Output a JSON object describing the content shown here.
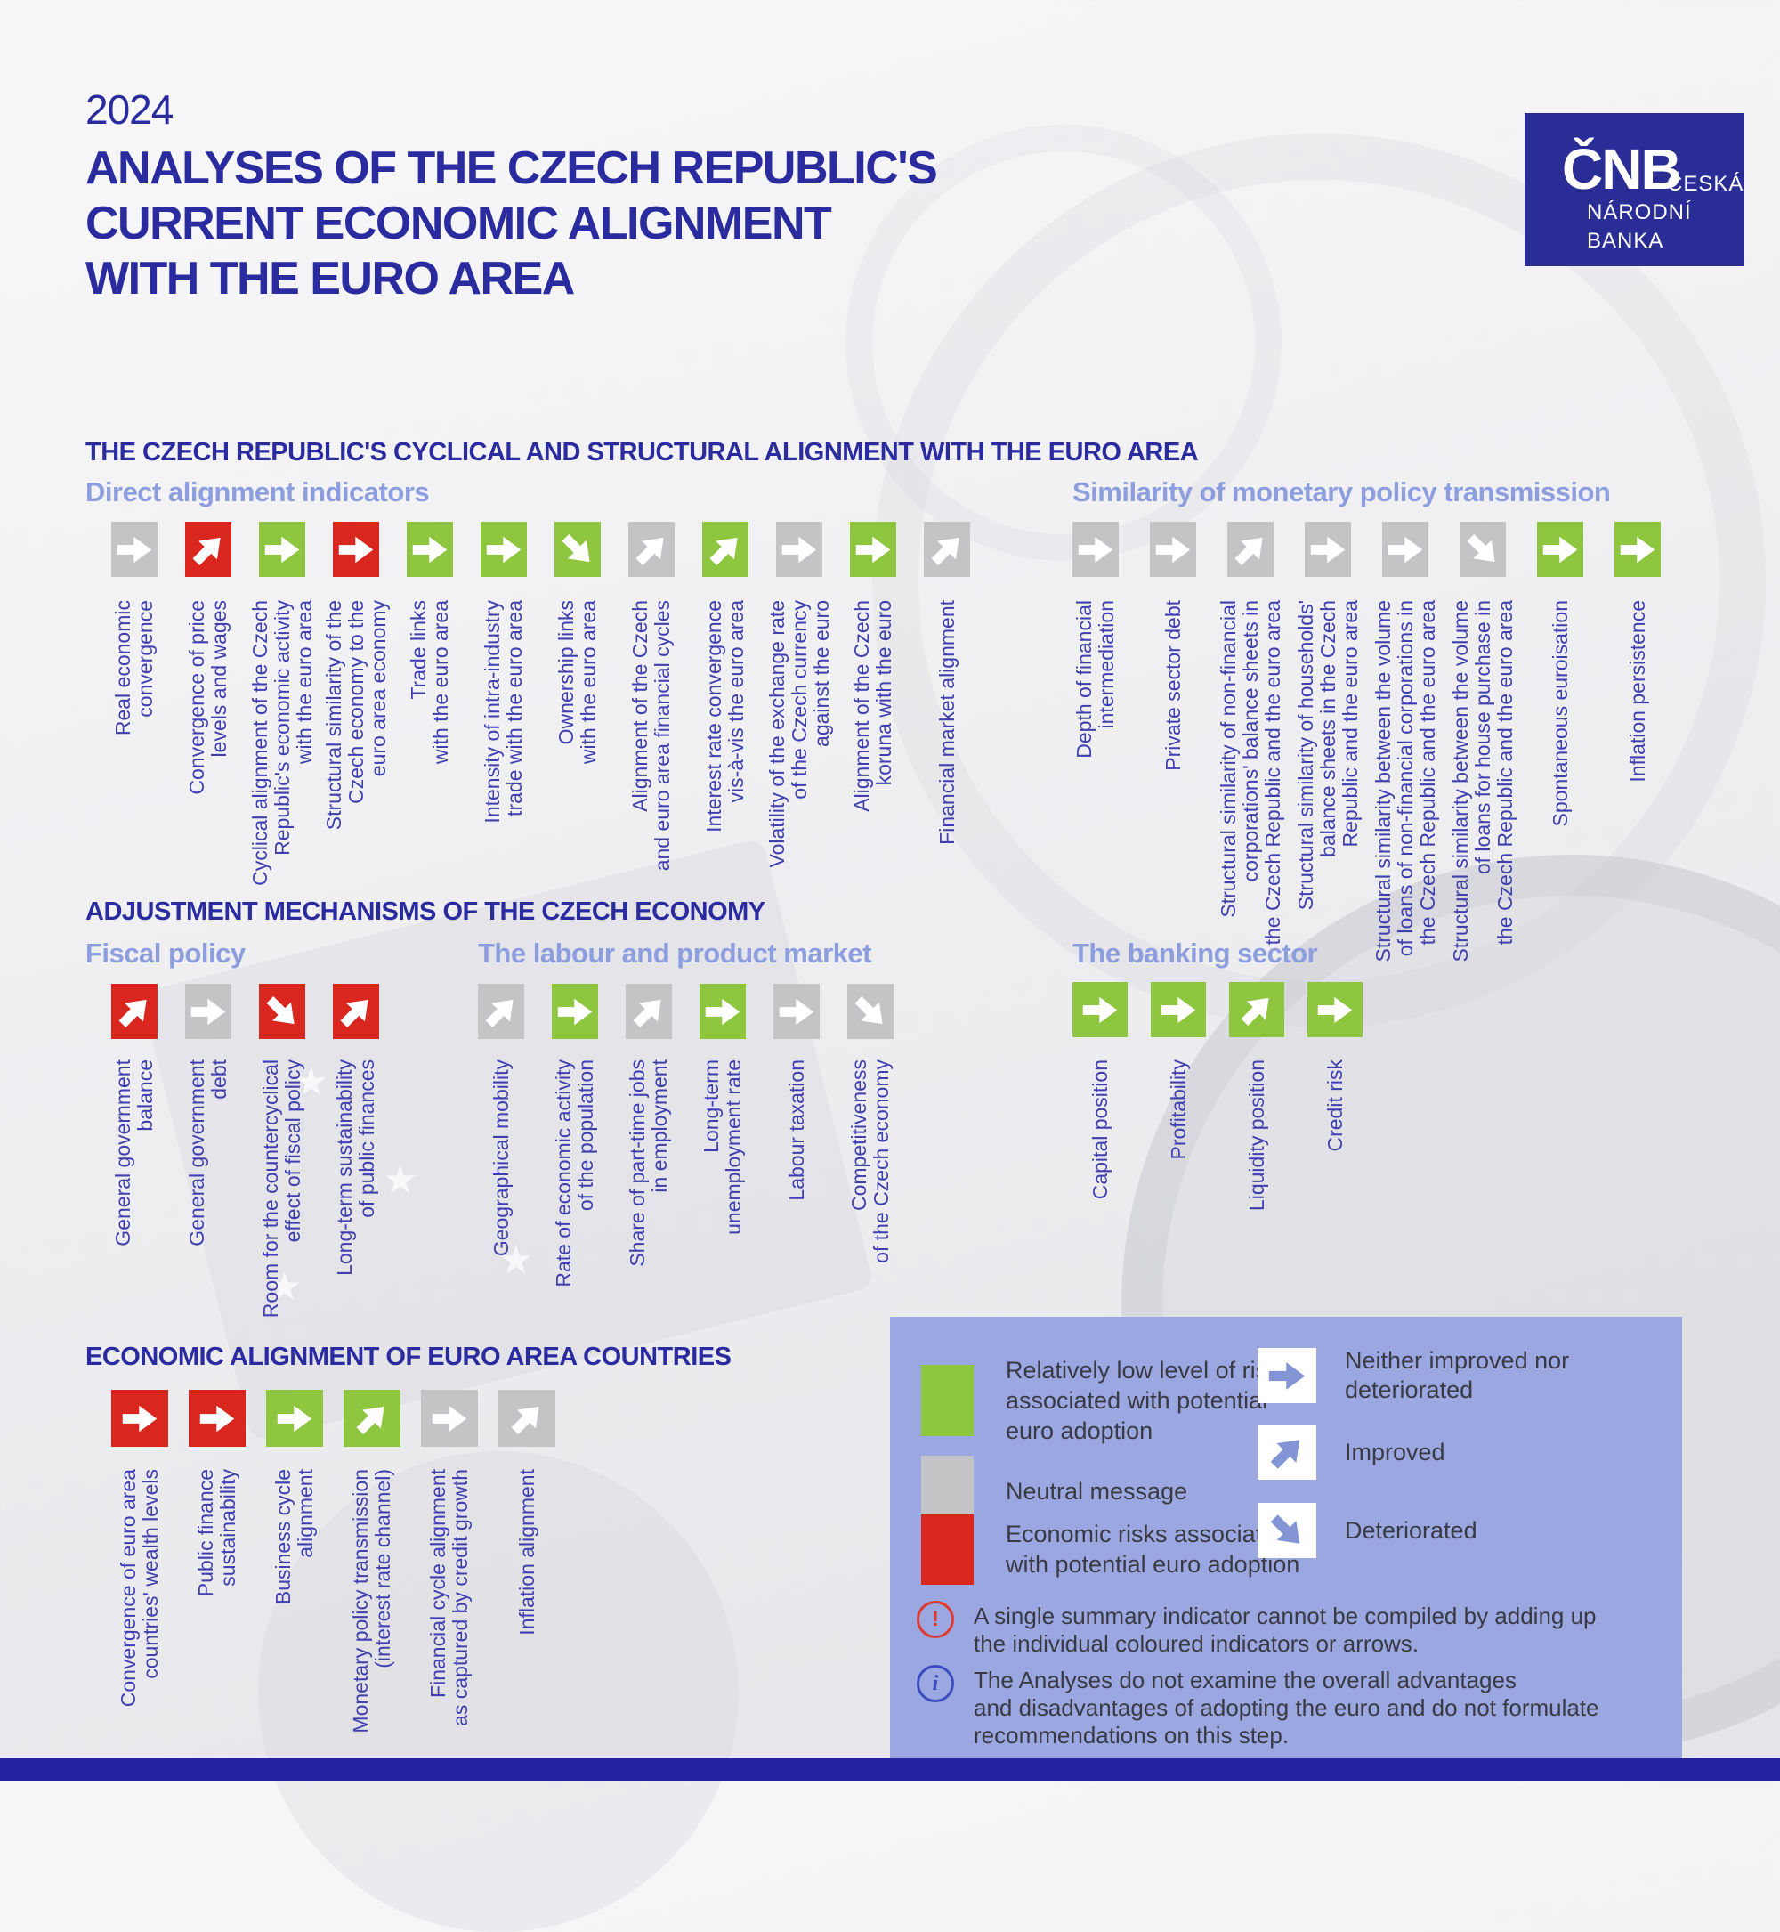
{
  "colors": {
    "green": "#8fc640",
    "grey": "#c4c4c6",
    "red": "#d9261f",
    "dark_blue": "#2b2ba0",
    "label_blue": "#3f3fae",
    "subhead": "#8d9ede",
    "panel": "#9ba7e0",
    "panel_arrow": "#8495d5",
    "text": "#3a3a44",
    "note_warning": "#e03a30",
    "note_info": "#3b4cc0",
    "bottom_bar": "#2323a2",
    "logo_bg": "#2a2d96"
  },
  "header": {
    "year": "2024",
    "title": "ANALYSES OF THE CZECH REPUBLIC'S\nCURRENT ECONOMIC ALIGNMENT\nWITH THE EURO AREA",
    "logo": {
      "abbr": "ČNB",
      "line1": "ČESKÁ",
      "line2": "NÁRODNÍ",
      "line3": "BANKA"
    }
  },
  "sections": {
    "alignment": {
      "title": "THE CZECH REPUBLIC'S CYCLICAL AND STRUCTURAL ALIGNMENT WITH THE EURO AREA"
    },
    "adjustment": {
      "title": "ADJUSTMENT MECHANISMS OF THE CZECH ECONOMY"
    },
    "euro_countries": {
      "title": "ECONOMIC ALIGNMENT OF EURO AREA COUNTRIES"
    }
  },
  "groups": {
    "direct": {
      "name": "Direct alignment indicators",
      "indicators": [
        {
          "label": "Real economic\nconvergence",
          "color": "grey",
          "trend": "same"
        },
        {
          "label": "Convergence of price\nlevels and wages",
          "color": "red",
          "trend": "improved"
        },
        {
          "label": "Cyclical alignment of the Czech\nRepublic's economic activity\nwith the euro area",
          "color": "green",
          "trend": "same"
        },
        {
          "label": "Structural similarity of the\nCzech economy to the\neuro area economy",
          "color": "red",
          "trend": "same"
        },
        {
          "label": "Trade links\nwith the euro area",
          "color": "green",
          "trend": "same"
        },
        {
          "label": "Intensity of intra-industry\ntrade with the euro area",
          "color": "green",
          "trend": "same"
        },
        {
          "label": "Ownership links\nwith the euro area",
          "color": "green",
          "trend": "deteriorated"
        },
        {
          "label": "Alignment of the Czech\nand euro area financial cycles",
          "color": "grey",
          "trend": "improved"
        },
        {
          "label": "Interest rate convergence\nvis-à-vis the euro area",
          "color": "green",
          "trend": "improved"
        },
        {
          "label": "Volatility of the exchange rate\nof the Czech currency\nagainst the euro",
          "color": "grey",
          "trend": "same"
        },
        {
          "label": "Alignment of the Czech\nkoruna with the euro",
          "color": "green",
          "trend": "same"
        },
        {
          "label": "Financial market alignment",
          "color": "grey",
          "trend": "improved"
        }
      ]
    },
    "similarity": {
      "name": "Similarity of monetary policy transmission",
      "indicators": [
        {
          "label": "Depth of financial\nintermediation",
          "color": "grey",
          "trend": "same"
        },
        {
          "label": "Private sector debt",
          "color": "grey",
          "trend": "same"
        },
        {
          "label": "Structural similarity of non-financial\ncorporations' balance sheets in\nthe Czech Republic and the euro area",
          "color": "grey",
          "trend": "improved"
        },
        {
          "label": "Structural similarity of households'\nbalance sheets in the Czech\nRepublic and the euro area",
          "color": "grey",
          "trend": "same"
        },
        {
          "label": "Structural similarity between the volume\nof loans of non-financial corporations in\nthe Czech Republic and the euro area",
          "color": "grey",
          "trend": "same"
        },
        {
          "label": "Structural similarity between the volume\nof loans for house purchase in\nthe Czech Republic and the euro area",
          "color": "grey",
          "trend": "deteriorated"
        },
        {
          "label": "Spontaneous euroisation",
          "color": "green",
          "trend": "same"
        },
        {
          "label": "Inflation persistence",
          "color": "green",
          "trend": "same"
        }
      ]
    },
    "fiscal": {
      "name": "Fiscal policy",
      "indicators": [
        {
          "label": "General government\nbalance",
          "color": "red",
          "trend": "improved"
        },
        {
          "label": "General government\ndebt",
          "color": "grey",
          "trend": "same"
        },
        {
          "label": "Room for the countercyclical\neffect of fiscal policy",
          "color": "red",
          "trend": "deteriorated"
        },
        {
          "label": "Long-term sustainability\nof public finances",
          "color": "red",
          "trend": "improved"
        }
      ]
    },
    "labour": {
      "name": "The labour and product market",
      "indicators": [
        {
          "label": "Geographical mobility",
          "color": "grey",
          "trend": "improved"
        },
        {
          "label": "Rate of economic activity\nof the population",
          "color": "green",
          "trend": "same"
        },
        {
          "label": "Share of part-time jobs\nin employment",
          "color": "grey",
          "trend": "improved"
        },
        {
          "label": "Long-term\nunemployment rate",
          "color": "green",
          "trend": "same"
        },
        {
          "label": "Labour taxation",
          "color": "grey",
          "trend": "same"
        },
        {
          "label": "Competitiveness\nof the Czech economy",
          "color": "grey",
          "trend": "deteriorated"
        }
      ]
    },
    "banking": {
      "name": "The banking sector",
      "indicators": [
        {
          "label": "Capital position",
          "color": "green",
          "trend": "same"
        },
        {
          "label": "Profitability",
          "color": "green",
          "trend": "same"
        },
        {
          "label": "Liquidity position",
          "color": "green",
          "trend": "improved"
        },
        {
          "label": "Credit risk",
          "color": "green",
          "trend": "same"
        }
      ]
    },
    "euroarea": {
      "name": "",
      "indicators": [
        {
          "label": "Convergence of euro area\ncountries' wealth levels",
          "color": "red",
          "trend": "same"
        },
        {
          "label": "Public finance\nsustainability",
          "color": "red",
          "trend": "same"
        },
        {
          "label": "Business cycle\nalignment",
          "color": "green",
          "trend": "same"
        },
        {
          "label": "Monetary policy transmission\n(interest rate channel)",
          "color": "green",
          "trend": "improved"
        },
        {
          "label": "Financial cycle alignment\nas captured by credit growth",
          "color": "grey",
          "trend": "same"
        },
        {
          "label": "Inflation alignment",
          "color": "grey",
          "trend": "improved"
        }
      ]
    }
  },
  "legend": {
    "risk_levels": [
      {
        "color": "green",
        "text": "Relatively low level of risk\nassociated with potential\neuro adoption"
      },
      {
        "color": "grey",
        "text": "Neutral message"
      },
      {
        "color": "red",
        "text": "Economic risks associated\nwith potential euro adoption"
      }
    ],
    "trends": [
      {
        "trend": "same",
        "text": "Neither improved nor\ndeteriorated"
      },
      {
        "trend": "improved",
        "text": "Improved"
      },
      {
        "trend": "deteriorated",
        "text": "Deteriorated"
      }
    ],
    "notes": [
      {
        "icon": "warning",
        "text": "A single summary indicator cannot be compiled by adding up\nthe individual coloured indicators or arrows."
      },
      {
        "icon": "info",
        "text": "The Analyses do not examine the overall advantages\nand disadvantages of adopting the euro and do not formulate\nrecommendations on this step."
      }
    ]
  }
}
